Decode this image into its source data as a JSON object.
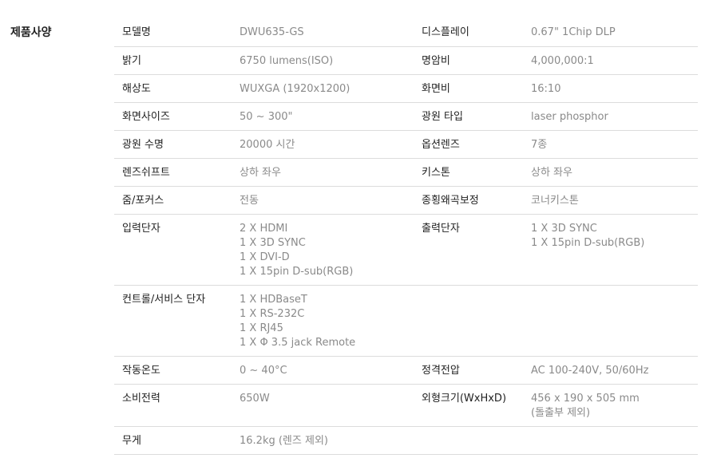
{
  "section_title": "제품사양",
  "rows": [
    {
      "l1": "모델명",
      "v1": [
        "DWU635-GS"
      ],
      "l2": "디스플레이",
      "v2": [
        "0.67\" 1Chip DLP"
      ]
    },
    {
      "l1": "밝기",
      "v1": [
        "6750 lumens(ISO)"
      ],
      "l2": "명암비",
      "v2": [
        "4,000,000:1"
      ]
    },
    {
      "l1": "해상도",
      "v1": [
        "WUXGA (1920x1200)"
      ],
      "l2": "화면비",
      "v2": [
        "16:10"
      ]
    },
    {
      "l1": "화면사이즈",
      "v1": [
        "50 ~ 300\""
      ],
      "l2": "광원 타입",
      "v2": [
        "laser phosphor"
      ]
    },
    {
      "l1": "광원 수명",
      "v1": [
        "20000 시간"
      ],
      "l2": "옵션렌즈",
      "v2": [
        "7종"
      ]
    },
    {
      "l1": "렌즈쉬프트",
      "v1": [
        "상하 좌우"
      ],
      "l2": "키스톤",
      "v2": [
        "상하 좌우"
      ]
    },
    {
      "l1": "줌/포커스",
      "v1": [
        "전동"
      ],
      "l2": "종횡왜곡보정",
      "v2": [
        "코너키스톤"
      ]
    },
    {
      "l1": "입력단자",
      "v1": [
        "2 X HDMI",
        "1 X 3D SYNC",
        "1 X DVI-D",
        "1 X 15pin D-sub(RGB)"
      ],
      "l2": "출력단자",
      "v2": [
        "1 X 3D SYNC",
        "1 X 15pin D-sub(RGB)"
      ]
    },
    {
      "l1": "컨트롤/서비스 단자",
      "v1": [
        "1 X HDBaseT",
        "1 X RS-232C",
        "1 X RJ45",
        "1 X Φ 3.5 jack Remote"
      ],
      "l2": "",
      "v2": []
    },
    {
      "l1": "작동온도",
      "v1": [
        "0 ~ 40°C"
      ],
      "l2": "정격전압",
      "v2": [
        "AC 100-240V, 50/60Hz"
      ]
    },
    {
      "l1": "소비전력",
      "v1": [
        "650W"
      ],
      "l2": "외형크기(WxHxD)",
      "v2": [
        "456 x 190 x 505 mm",
        "(돌출부 제외)"
      ]
    },
    {
      "l1": "무게",
      "v1": [
        "16.2kg (렌즈 제외)"
      ],
      "l2": "",
      "v2": []
    }
  ]
}
